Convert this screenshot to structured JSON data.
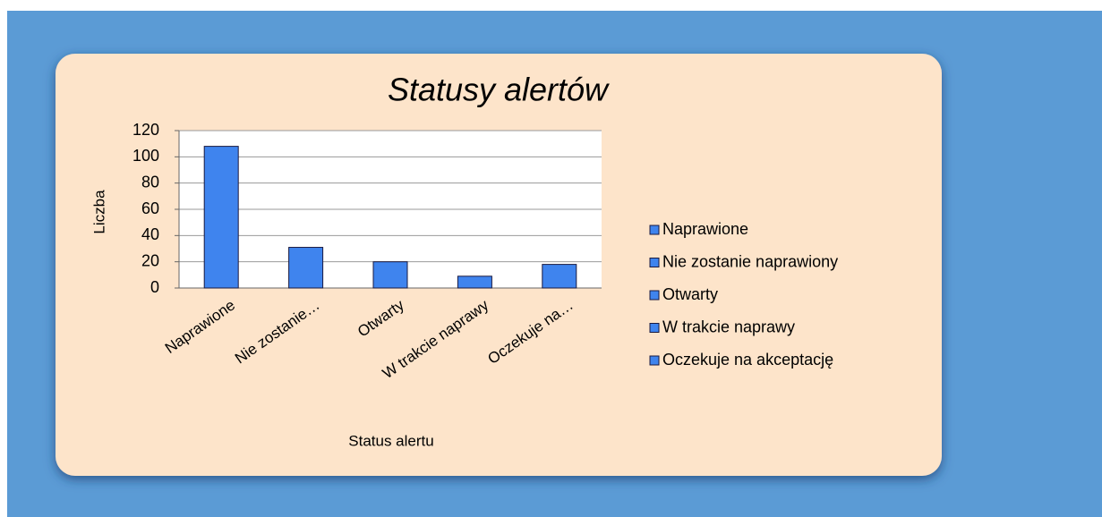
{
  "chart_data": {
    "type": "bar",
    "title": "Statusy alertów",
    "categories": [
      "Naprawione",
      "Nie zostanie…",
      "Otwarty",
      "W trakcie naprawy",
      "Oczekuje na…"
    ],
    "values": [
      108,
      31,
      20,
      9,
      18
    ],
    "color": "#3f84ee",
    "ylim": [
      0,
      120
    ],
    "yticks": [
      0,
      20,
      40,
      60,
      80,
      100,
      120
    ],
    "grid": true,
    "x_label": "Status alertu",
    "y_label": "Liczba",
    "legend": [
      "Naprawione",
      "Nie zostanie naprawiony",
      "Otwarty",
      "W trakcie naprawy",
      "Oczekuje na akceptację"
    ],
    "legend_position": "right"
  }
}
